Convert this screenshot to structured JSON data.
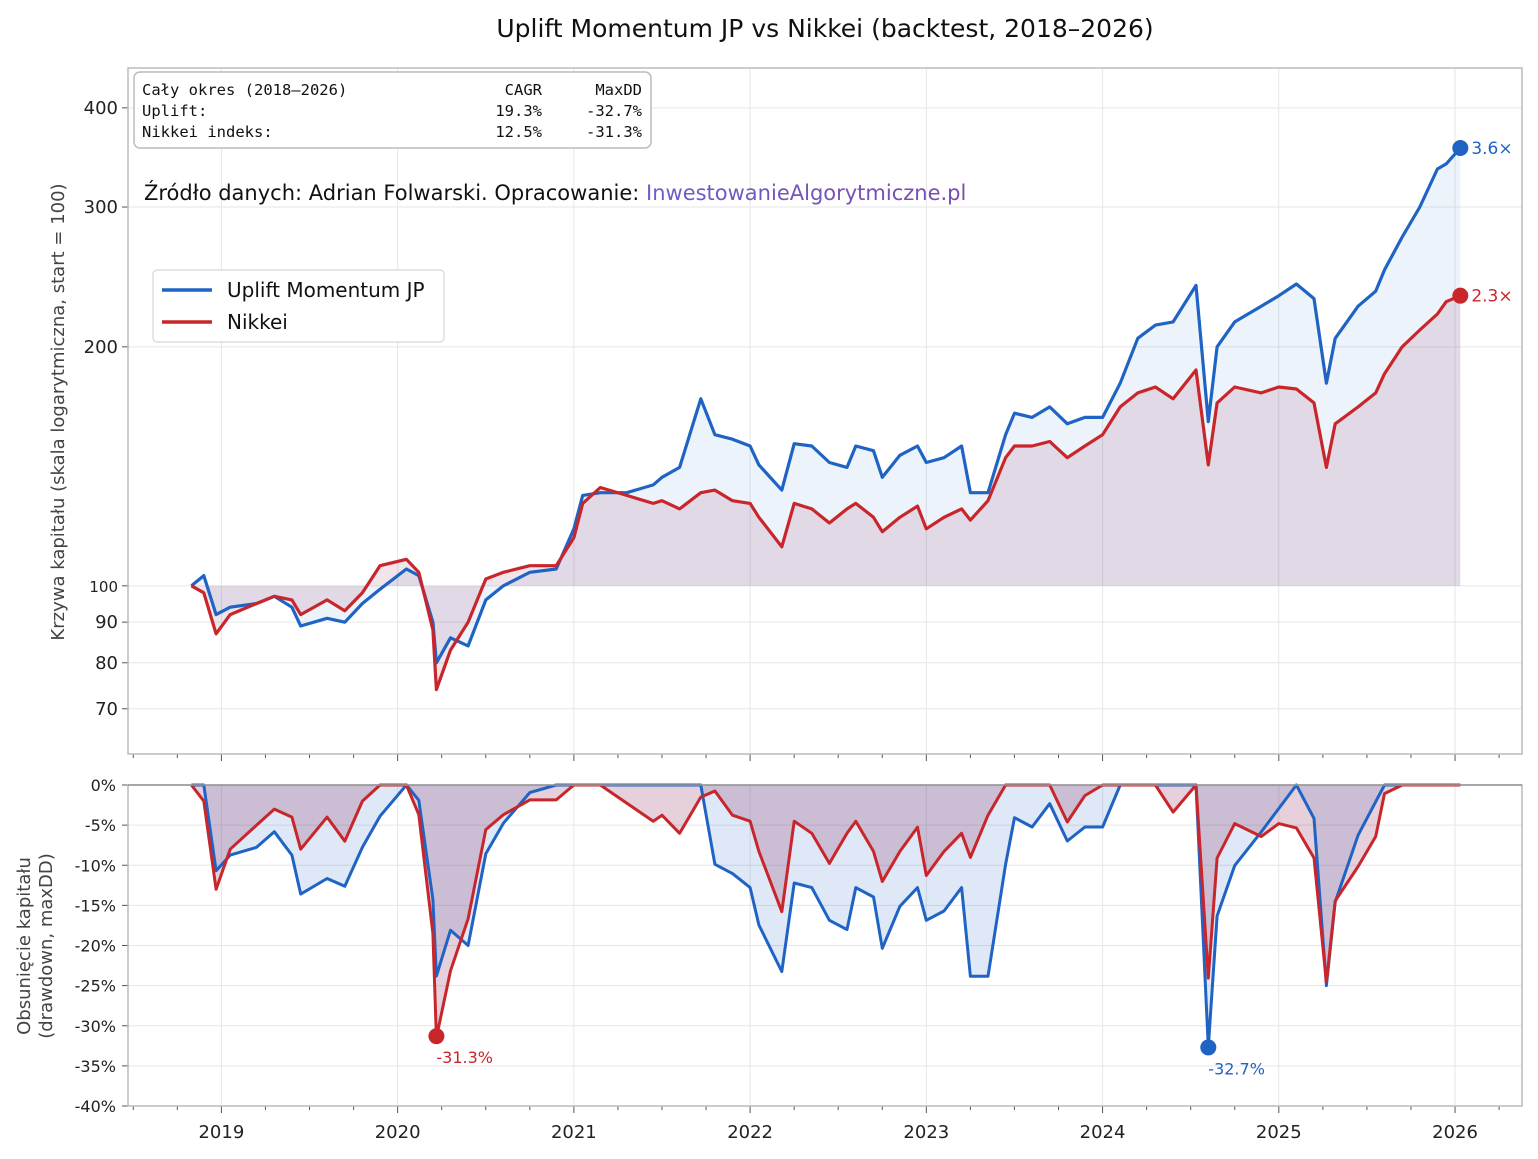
{
  "chart_data": [
    {
      "type": "line",
      "title": "Uplift Momentum JP vs Nikkei  (backtest, 2018–2026)",
      "ylabel": "Krzywa kapitału (skala logarytmicznej, start = 100)",
      "ylabel_text": "Krzywa kapitału (skala logarytmiczna, start = 100)",
      "yscale": "log",
      "ylim": [
        61.4,
        449
      ],
      "xlim": [
        2018.47,
        2026.38
      ],
      "yticks": [
        70,
        80,
        90,
        100,
        200,
        300,
        400
      ],
      "xticks": [
        "2019",
        "2020",
        "2021",
        "2022",
        "2023",
        "2024",
        "2025",
        "2026"
      ],
      "grid": true,
      "legend": "upper-left",
      "stats_box": {
        "header": [
          "Cały okres (2018–2026)",
          "CAGR",
          "MaxDD"
        ],
        "rows": [
          [
            "Uplift:",
            "19.3%",
            "-32.7%"
          ],
          [
            "Nikkei indeks:",
            "12.5%",
            "-31.3%"
          ]
        ]
      },
      "source_text": "Źródło danych: Adrian Folwarski. Opracowanie: ",
      "source_link": "InwestowanieAlgorytmiczne.pl",
      "end_labels": {
        "uplift": "3.6×",
        "nikkei": "2.3×"
      },
      "x": [
        2018.83,
        2018.9,
        2018.97,
        2019.05,
        2019.2,
        2019.3,
        2019.4,
        2019.45,
        2019.6,
        2019.7,
        2019.8,
        2019.9,
        2020.05,
        2020.12,
        2020.2,
        2020.22,
        2020.3,
        2020.4,
        2020.5,
        2020.6,
        2020.75,
        2020.9,
        2021.0,
        2021.05,
        2021.15,
        2021.3,
        2021.45,
        2021.5,
        2021.6,
        2021.72,
        2021.8,
        2021.9,
        2022.0,
        2022.05,
        2022.18,
        2022.25,
        2022.35,
        2022.45,
        2022.55,
        2022.6,
        2022.7,
        2022.75,
        2022.85,
        2022.95,
        2023.0,
        2023.1,
        2023.2,
        2023.25,
        2023.35,
        2023.45,
        2023.5,
        2023.6,
        2023.7,
        2023.8,
        2023.9,
        2024.0,
        2024.1,
        2024.2,
        2024.3,
        2024.4,
        2024.53,
        2024.6,
        2024.65,
        2024.75,
        2024.9,
        2025.0,
        2025.1,
        2025.2,
        2025.27,
        2025.32,
        2025.45,
        2025.55,
        2025.6,
        2025.7,
        2025.8,
        2025.9,
        2025.95,
        2026.03
      ],
      "series": [
        {
          "name": "Uplift Momentum JP",
          "color": "#1f63c4",
          "values": [
            100,
            103,
            92,
            94,
            95,
            97,
            94,
            89,
            91,
            90,
            95,
            99,
            105,
            103,
            90,
            80,
            86,
            84,
            96,
            100,
            104,
            105,
            118,
            130,
            131,
            131,
            134,
            137,
            141,
            172,
            155,
            153,
            150,
            142,
            132,
            151,
            150,
            143,
            141,
            150,
            148,
            137,
            146,
            150,
            143,
            145,
            150,
            131,
            131,
            155,
            165,
            163,
            168,
            160,
            163,
            163,
            180,
            205,
            213,
            215,
            239,
            161,
            200,
            215,
            225,
            232,
            240,
            230,
            180,
            205,
            225,
            235,
            250,
            275,
            300,
            335,
            340,
            356
          ]
        },
        {
          "name": "Nikkei",
          "color": "#c8262b",
          "values": [
            100,
            98,
            87,
            92,
            95,
            97,
            96,
            92,
            96,
            93,
            98,
            106,
            108,
            104,
            88,
            74,
            83,
            90,
            102,
            104,
            106,
            106,
            115,
            127,
            133,
            130,
            127,
            128,
            125,
            131,
            132,
            128,
            127,
            122,
            112,
            127,
            125,
            120,
            125,
            127,
            122,
            117,
            122,
            126,
            118,
            122,
            125,
            121,
            128,
            145,
            150,
            150,
            152,
            145,
            150,
            155,
            168,
            175,
            178,
            172,
            187,
            142,
            170,
            178,
            175,
            178,
            177,
            170,
            141,
            160,
            168,
            175,
            185,
            200,
            210,
            220,
            228,
            232
          ]
        }
      ]
    },
    {
      "type": "area",
      "ylabel": "Obsunięcie kapitału\n(drawdown, maxDD)",
      "ylabel_line1": "Obsunięcie kapitału",
      "ylabel_line2": "(drawdown, maxDD)",
      "ylim": [
        -40,
        0
      ],
      "yticks": [
        "0%",
        "-5%",
        "-10%",
        "-15%",
        "-20%",
        "-25%",
        "-30%",
        "-35%",
        "-40%"
      ],
      "grid": true,
      "annotations": [
        {
          "series": "Nikkei",
          "date": 2020.22,
          "value": -31.3,
          "label": "-31.3%"
        },
        {
          "series": "Uplift Momentum JP",
          "date": 2024.6,
          "value": -32.7,
          "label": "-32.7%"
        }
      ]
    }
  ]
}
